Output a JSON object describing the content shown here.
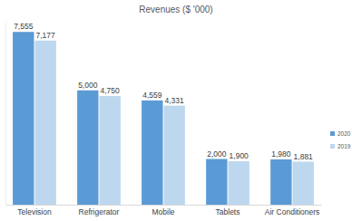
{
  "chart_data": {
    "type": "bar",
    "title": "Revenues ($ '000)",
    "categories": [
      "Television",
      "Refrigerator",
      "Mobile",
      "Tablets",
      "Air Conditioners"
    ],
    "series": [
      {
        "name": "2020",
        "color": "#5b9bd5",
        "values": [
          7555,
          5000,
          4559,
          2000,
          1980
        ],
        "value_labels": [
          "7,555",
          "5,000",
          "4,559",
          "2,000",
          "1,980"
        ]
      },
      {
        "name": "2019",
        "color": "#bdd7ee",
        "values": [
          7177,
          4750,
          4331,
          1900,
          1881
        ],
        "value_labels": [
          "7,177",
          "4,750",
          "4,331",
          "1,900",
          "1,881"
        ]
      }
    ],
    "ylim": [
      0,
      8000
    ],
    "grid": false,
    "legend": "right",
    "data_labels": true,
    "tick_labels": "x"
  }
}
